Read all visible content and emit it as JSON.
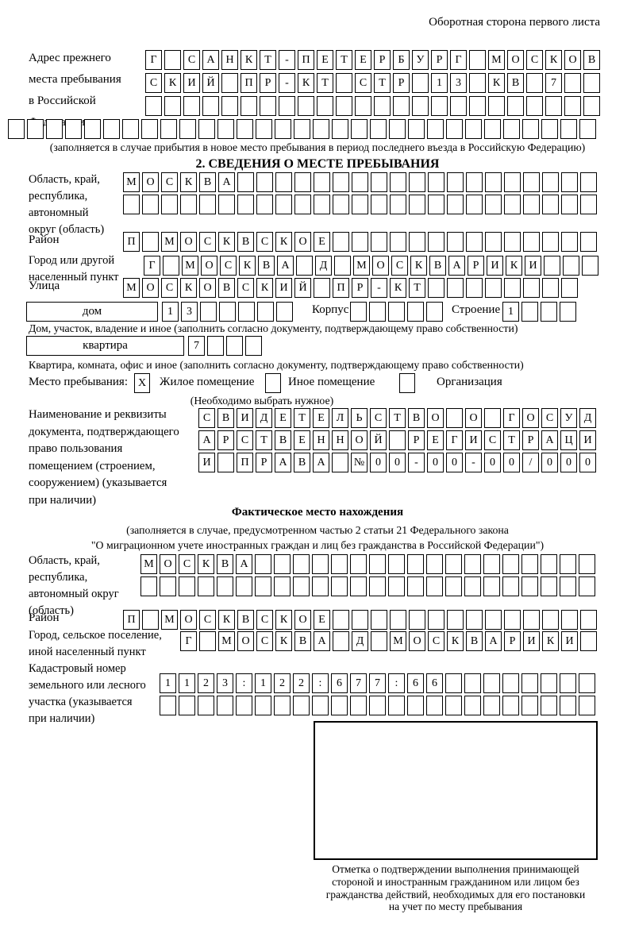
{
  "page": {
    "top_note": "Оборотная сторона первого листа"
  },
  "prev_address": {
    "label": "Адрес прежнего\nместа пребывания\nв Российской\nФедерации",
    "rows": [
      {
        "n": 24,
        "s": "Г САНКТ-ПЕТЕРБУРГ МОСКОВ"
      },
      {
        "n": 24,
        "s": "СКИЙ ПР-КТ СТР 13 КВ 7"
      },
      {
        "n": 24,
        "s": ""
      },
      {
        "n": 31,
        "s": ""
      }
    ],
    "note": "(заполняется в случае прибытия в новое место пребывания в период последнего въезда в Российскую Федерацию)"
  },
  "section2": {
    "heading": "2. СВЕДЕНИЯ О МЕСТЕ ПРЕБЫВАНИЯ",
    "oblast": {
      "label": "Область, край,\nреспублика,\nавтономный\nокруг (область)",
      "rows": [
        {
          "n": 25,
          "s": "МОСКВА"
        },
        {
          "n": 25,
          "s": ""
        }
      ]
    },
    "raion": {
      "label": "Район",
      "row": {
        "n": 25,
        "s": "П МОСКВСКОЕ"
      }
    },
    "gorod": {
      "label": "Город или другой\nнаселенный пункт",
      "row": {
        "n": 24,
        "s": "Г МОСКВА Д МОСКВАРИКИ"
      }
    },
    "ulitsa": {
      "label": "Улица",
      "row": {
        "n": 24,
        "s": "МОСКОВСКИЙ ПР-КТ"
      }
    },
    "dom": {
      "box_label": "дом",
      "cells": {
        "n": 7,
        "s": "13"
      },
      "korpus_label": "Корпус",
      "korpus_cells": {
        "n": 5,
        "s": ""
      },
      "stroenie_label": "Строение",
      "stroenie_cells": {
        "n": 4,
        "s": "1"
      }
    },
    "dom_note": "Дом, участок, владение и иное (заполнить согласно документу, подтверждающему право собственности)",
    "kvartira": {
      "box_label": "квартира",
      "cells": {
        "n": 4,
        "s": "7"
      }
    },
    "kvartira_note": "Квартира, комната, офис и иное (заполнить согласно документу, подтверждающему право собственности)",
    "mesto": {
      "label": "Место пребывания:",
      "options": [
        {
          "label": "Жилое помещение",
          "mark": "X"
        },
        {
          "label": "Иное помещение",
          "mark": ""
        },
        {
          "label": "Организация",
          "mark": ""
        }
      ],
      "note": "(Необходимо выбрать нужное)"
    },
    "document": {
      "label": "Наименование и реквизиты\nдокумента, подтверждающего\nправо пользования\nпомещением (строением,\nсооружением) (указывается\nпри наличии)",
      "rows": [
        {
          "n": 21,
          "s": "СВИДЕТЕЛЬСТВО О ГОСУД"
        },
        {
          "n": 21,
          "s": "АРСТВЕННОЙ РЕГИСТРАЦИ"
        },
        {
          "n": 21,
          "s": "И ПРАВА №00-00-00/000"
        }
      ]
    }
  },
  "factual": {
    "heading": "Фактическое место нахождения",
    "note": "(заполняется в случае, предусмотренном частью 2 статьи 21 Федерального закона\n\"О миграционном учете иностранных граждан и лиц без гражданства в Российской Федерации\")",
    "oblast": {
      "label": "Область, край,\nреспублика,\nавтономный округ\n(область)",
      "rows": [
        {
          "n": 24,
          "s": "МОСКВА"
        },
        {
          "n": 24,
          "s": ""
        }
      ]
    },
    "raion": {
      "label": "Район",
      "row": {
        "n": 25,
        "s": "П МОСКВСКОЕ"
      }
    },
    "gorod": {
      "label": "Город, сельское поселение,\nиной населенный пункт",
      "row": {
        "n": 22,
        "s": "Г МОСКВА Д МОСКВАРИКИ"
      }
    },
    "kadastr": {
      "label": "Кадастровый номер\nземельного или лесного\nучастка (указывается\nпри наличии)",
      "rows": [
        {
          "n": 23,
          "s": "1123:122:677:66"
        },
        {
          "n": 23,
          "s": ""
        }
      ]
    },
    "stamp_note": "Отметка о подтверждении выполнения принимающей\nстороной и иностранным гражданином или лицом без\nгражданства действий, необходимых для его постановки\nна учет по месту пребывания"
  }
}
